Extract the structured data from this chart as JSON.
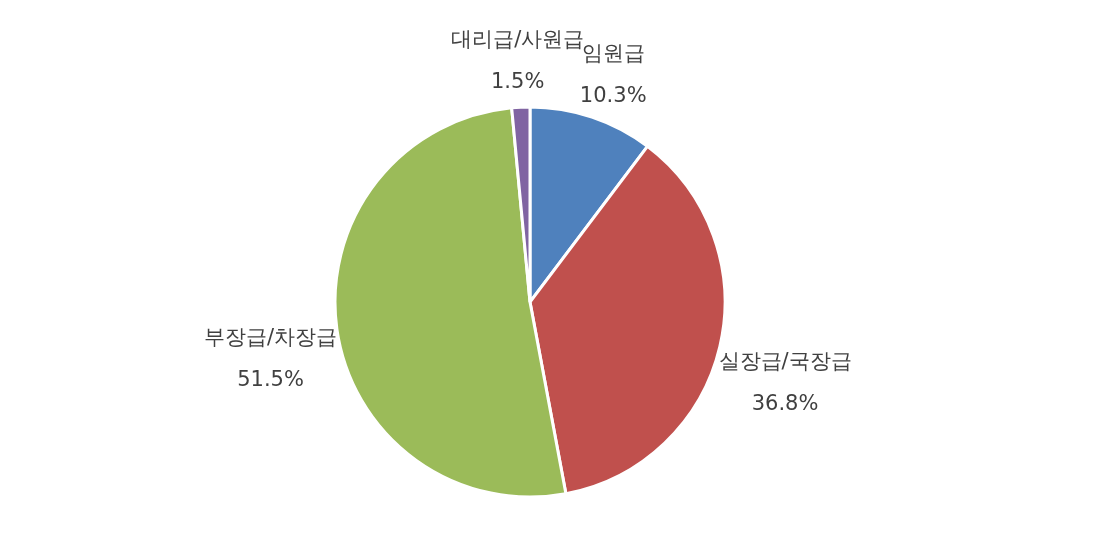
{
  "chart_data": {
    "type": "pie",
    "categories": [
      "임원급",
      "실장급/국장급",
      "부장급/차장급",
      "대리급/사원급"
    ],
    "values": [
      10.3,
      36.8,
      51.5,
      1.5
    ],
    "value_labels": [
      "10.3%",
      "36.8%",
      "51.5%",
      "1.5%"
    ],
    "colors": [
      "#4f81bd",
      "#c0504d",
      "#9bbb59",
      "#8064a2"
    ],
    "legend": false
  }
}
